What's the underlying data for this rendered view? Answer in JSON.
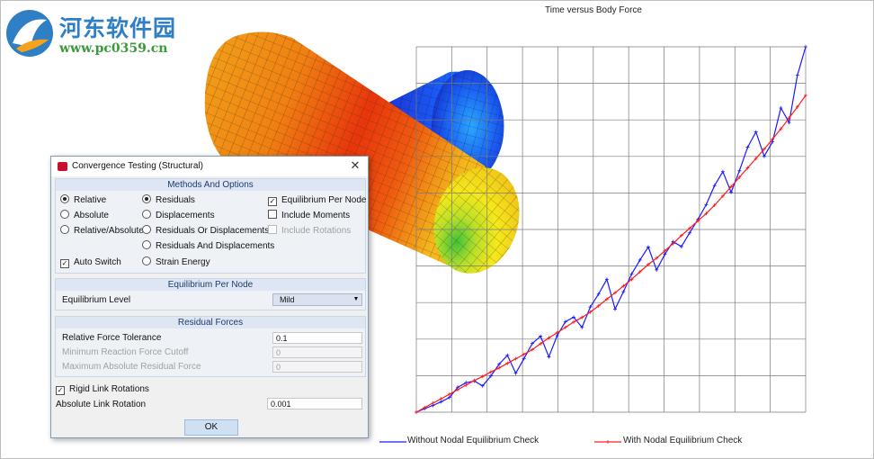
{
  "watermark": {
    "title": "河东软件园",
    "url": "www.pc0359.cn"
  },
  "chart_data": {
    "type": "line",
    "title": "Time versus Body Force",
    "xlabel": "",
    "ylabel": "",
    "grid": true,
    "legend_position": "bottom",
    "x": [
      0,
      1,
      2,
      3,
      4,
      5,
      6,
      7,
      8,
      9,
      10,
      11,
      12,
      13,
      14,
      15,
      16,
      17,
      18,
      19,
      20,
      21,
      22,
      23,
      24,
      25,
      26,
      27,
      28,
      29,
      30,
      31,
      32,
      33,
      34,
      35,
      36,
      37,
      38,
      39,
      40,
      41,
      42,
      43,
      44,
      45,
      46,
      47
    ],
    "series": [
      {
        "name": "Without Nodal Equilibrium Check",
        "color": "#1a1aff",
        "values": [
          0,
          1.3,
          2.5,
          3.9,
          5.5,
          9.3,
          11.0,
          11.6,
          9.8,
          13.5,
          17.9,
          21.2,
          14.5,
          20.0,
          25.6,
          28.3,
          20.6,
          28.5,
          33.7,
          35.4,
          31.6,
          39.2,
          44.0,
          49.5,
          38.4,
          44.9,
          51.5,
          56.7,
          61.5,
          53.0,
          58.8,
          63.5,
          61.7,
          66.8,
          71.8,
          77.3,
          84.4,
          89.6,
          81.9,
          89.9,
          98.7,
          104.4,
          95.3,
          100.7,
          113.3,
          107.9,
          125.5,
          136.1
        ]
      },
      {
        "name": "With Nodal Equilibrium Check",
        "color": "#ff1a1a",
        "values": [
          0,
          1.7,
          3.4,
          5.0,
          6.7,
          8.4,
          10.1,
          11.8,
          13.3,
          15.0,
          16.5,
          18.2,
          19.9,
          21.6,
          23.3,
          25.5,
          27.7,
          29.6,
          31.6,
          33.6,
          35.3,
          37.3,
          39.6,
          42.1,
          44.5,
          47.0,
          49.5,
          52.3,
          55.0,
          57.4,
          60.1,
          62.8,
          65.8,
          68.5,
          71.3,
          74.0,
          77.1,
          80.5,
          84.0,
          87.5,
          91.0,
          94.5,
          98.0,
          101.7,
          105.5,
          109.6,
          113.7,
          118.0
        ]
      }
    ]
  },
  "dialog": {
    "title": "Convergence Testing (Structural)",
    "close_glyph": "✕",
    "methods": {
      "header": "Methods And Options",
      "col1": [
        {
          "label": "Relative",
          "checked": true
        },
        {
          "label": "Absolute",
          "checked": false
        },
        {
          "label": "Relative/Absolute",
          "checked": false
        }
      ],
      "auto_switch": {
        "label": "Auto Switch",
        "checked": true
      },
      "col2": [
        {
          "label": "Residuals",
          "checked": true
        },
        {
          "label": "Displacements",
          "checked": false
        },
        {
          "label": "Residuals Or Displacements",
          "checked": false
        },
        {
          "label": "Residuals And Displacements",
          "checked": false
        },
        {
          "label": "Strain Energy",
          "checked": false
        }
      ],
      "col3": [
        {
          "label": "Equilibrium Per Node",
          "checked": true
        },
        {
          "label": "Include Moments",
          "checked": false
        },
        {
          "label": "Include Rotations",
          "checked": false,
          "disabled": true
        }
      ]
    },
    "equilibrium": {
      "header": "Equilibrium Per Node",
      "level_label": "Equilibrium Level",
      "level_value": "Mild"
    },
    "residual": {
      "header": "Residual Forces",
      "rows": [
        {
          "label": "Relative Force Tolerance",
          "value": "0.1",
          "disabled": false
        },
        {
          "label": "Minimum Reaction Force Cutoff",
          "value": "0",
          "disabled": true
        },
        {
          "label": "Maximum Absolute Residual Force",
          "value": "0",
          "disabled": true
        }
      ]
    },
    "rigid_link": {
      "label": "Rigid Link Rotations",
      "checked": true
    },
    "abs_link": {
      "label": "Absolute Link Rotation",
      "value": "0.001"
    },
    "ok_label": "OK"
  }
}
